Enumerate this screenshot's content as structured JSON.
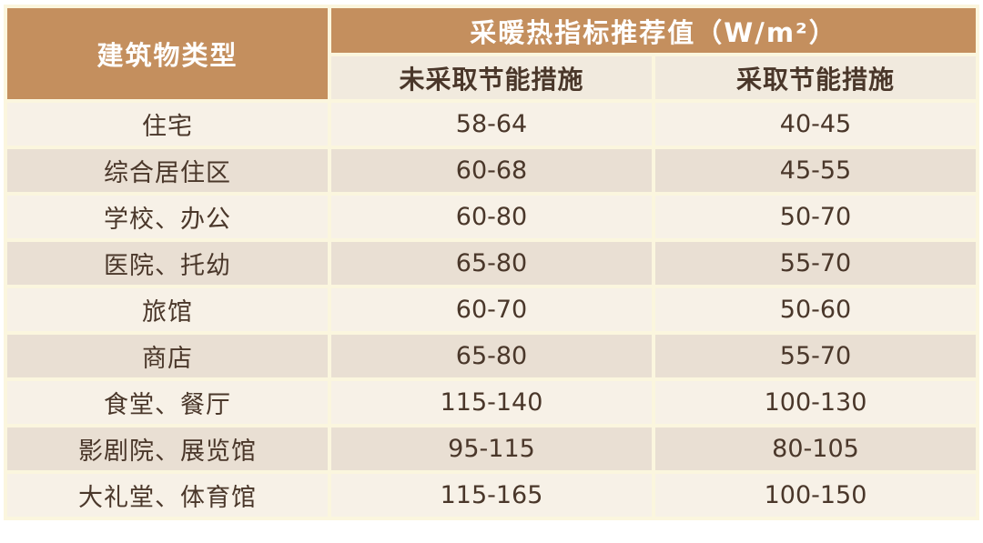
{
  "chart_data": {
    "type": "table",
    "title": "采暖热指标推荐值（W/m²）",
    "corner_header": "建筑物类型",
    "columns": [
      "未采取节能措施",
      "采取节能措施"
    ],
    "unit": "W/m²",
    "rows": [
      {
        "category": "住宅",
        "values": [
          "58-64",
          "40-45"
        ]
      },
      {
        "category": "综合居住区",
        "values": [
          "60-68",
          "45-55"
        ]
      },
      {
        "category": "学校、办公",
        "values": [
          "60-80",
          "50-70"
        ]
      },
      {
        "category": "医院、托幼",
        "values": [
          "65-80",
          "55-70"
        ]
      },
      {
        "category": "旅馆",
        "values": [
          "60-70",
          "50-60"
        ]
      },
      {
        "category": "商店",
        "values": [
          "65-80",
          "55-70"
        ]
      },
      {
        "category": "食堂、餐厅",
        "values": [
          "115-140",
          "100-130"
        ]
      },
      {
        "category": "影剧院、展览馆",
        "values": [
          "95-115",
          "80-105"
        ]
      },
      {
        "category": "大礼堂、体育馆",
        "values": [
          "115-165",
          "100-150"
        ]
      }
    ]
  },
  "colors": {
    "header_tan": "#C48F5E",
    "header_text": "#FFFFFF",
    "grid_cream": "#FBF6DE",
    "subheader_bg": "#F1EADE",
    "row_light": "#F7F1E7",
    "row_dark": "#E9DFD3",
    "body_text": "#4A372A",
    "page_bg": "#FFFFFF"
  }
}
